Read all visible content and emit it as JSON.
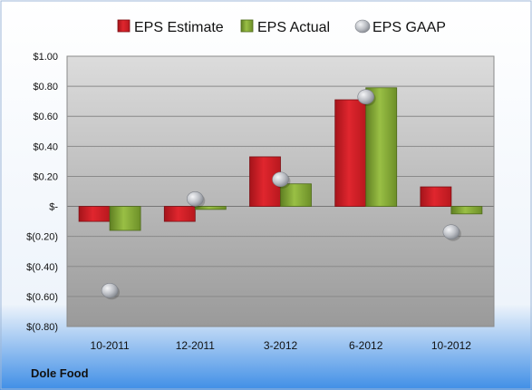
{
  "chart_data": {
    "type": "bar",
    "categories": [
      "10-2011",
      "12-2011",
      "3-2012",
      "6-2012",
      "10-2012"
    ],
    "series": [
      {
        "name": "EPS Estimate",
        "kind": "bar",
        "color": "#d21f26",
        "values": [
          -0.1,
          -0.1,
          0.33,
          0.71,
          0.13
        ]
      },
      {
        "name": "EPS Actual",
        "kind": "bar",
        "color": "#86ab34",
        "values": [
          -0.16,
          -0.02,
          0.15,
          0.79,
          -0.05
        ]
      },
      {
        "name": "EPS GAAP",
        "kind": "marker",
        "color": "#b9bcc2",
        "values": [
          -0.56,
          0.05,
          0.18,
          0.73,
          -0.17
        ]
      }
    ],
    "ylim": [
      -0.8,
      1.0
    ],
    "yticks": [
      1.0,
      0.8,
      0.6,
      0.4,
      0.2,
      0,
      -0.2,
      -0.4,
      -0.6,
      -0.8
    ],
    "ytick_labels": [
      "$1.00",
      "$0.80",
      "$0.60",
      "$0.40",
      "$0.20",
      "$-",
      "$(0.20)",
      "$(0.40)",
      "$(0.60)",
      "$(0.80)"
    ],
    "grid": true,
    "legend": "top"
  },
  "company": "Dole Food"
}
